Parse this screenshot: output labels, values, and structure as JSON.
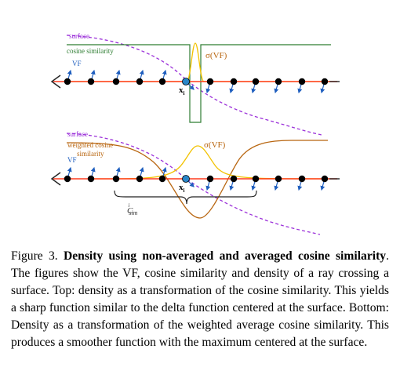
{
  "top_panel": {
    "legend_surface": "surface",
    "legend_cosine": "cosine similarity",
    "legend_vf": "VF",
    "sigma_label": "σ(VF)",
    "point_label": "x",
    "point_subscript": "i"
  },
  "bottom_panel": {
    "legend_surface": "surface",
    "legend_weighted_line1": "weighted cosine",
    "legend_weighted_line2": "similarity",
    "legend_vf": "VF",
    "sigma_label": "σ(VF)",
    "point_label": "x",
    "point_subscript": "i",
    "brace_label": "C",
    "brace_superscript": "i",
    "brace_subscript": "sim"
  },
  "colors": {
    "surface": "#9b30d9",
    "cosine": "#2e7d32",
    "weighted": "#b8650f",
    "sigma": "#f2c200",
    "ray": "#ff3b1f",
    "vf": "#1f5fbf",
    "point_highlight": "#2a86c8"
  },
  "caption": {
    "figure_number": "Figure 3.",
    "bold_title": "Density using non-averaged and averaged cosine similarity",
    "body": ". The figures show the VF, cosine similarity and density of a ray crossing a surface. Top: density as a transformation of the cosine similarity. This yields a sharp function similar to the delta function centered at the surface. Bottom: Density as a transformation of the weighted average cosine similarity. This produces a smoother function with the maximum centered at the surface."
  }
}
